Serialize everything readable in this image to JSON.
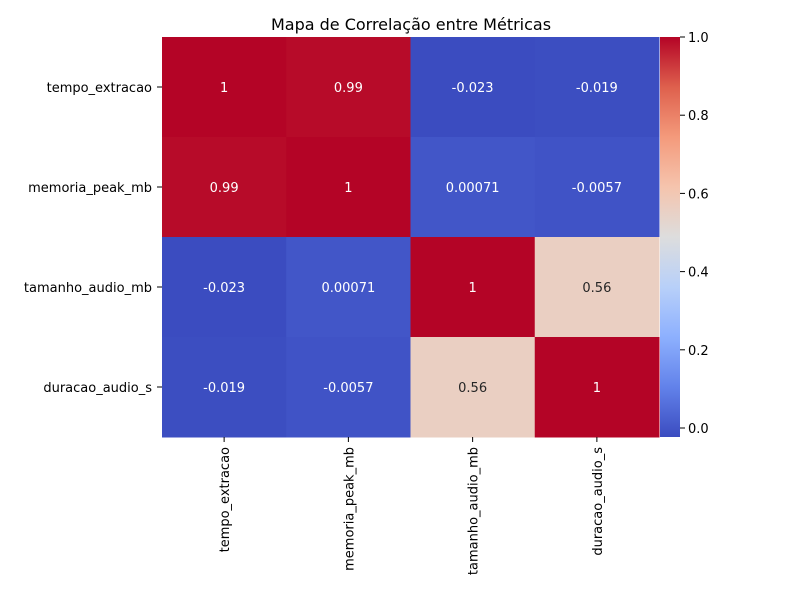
{
  "chart_data": {
    "type": "heatmap",
    "title": "Mapa de Correlação entre Métricas",
    "xlabel": "",
    "ylabel": "",
    "x_categories": [
      "tempo_extracao",
      "memoria_peak_mb",
      "tamanho_audio_mb",
      "duracao_audio_s"
    ],
    "y_categories": [
      "tempo_extracao",
      "memoria_peak_mb",
      "tamanho_audio_mb",
      "duracao_audio_s"
    ],
    "values": [
      [
        1,
        0.99,
        -0.023,
        -0.019
      ],
      [
        0.99,
        1,
        0.00071,
        -0.0057
      ],
      [
        -0.023,
        0.00071,
        1,
        0.56
      ],
      [
        -0.019,
        -0.0057,
        0.56,
        1
      ]
    ],
    "cell_labels": [
      [
        "1",
        "0.99",
        "-0.023",
        "-0.019"
      ],
      [
        "0.99",
        "1",
        "0.00071",
        "-0.0057"
      ],
      [
        "-0.023",
        "0.00071",
        "1",
        "0.56"
      ],
      [
        "-0.019",
        "-0.0057",
        "0.56",
        "1"
      ]
    ],
    "colormap": "coolwarm",
    "colorbar": {
      "vmin": -0.023,
      "vmax": 1.0,
      "ticks": [
        0.0,
        0.2,
        0.4,
        0.6,
        0.8,
        1.0
      ],
      "tick_labels": [
        "0.0",
        "0.2",
        "0.4",
        "0.6",
        "0.8",
        "1.0"
      ]
    }
  }
}
